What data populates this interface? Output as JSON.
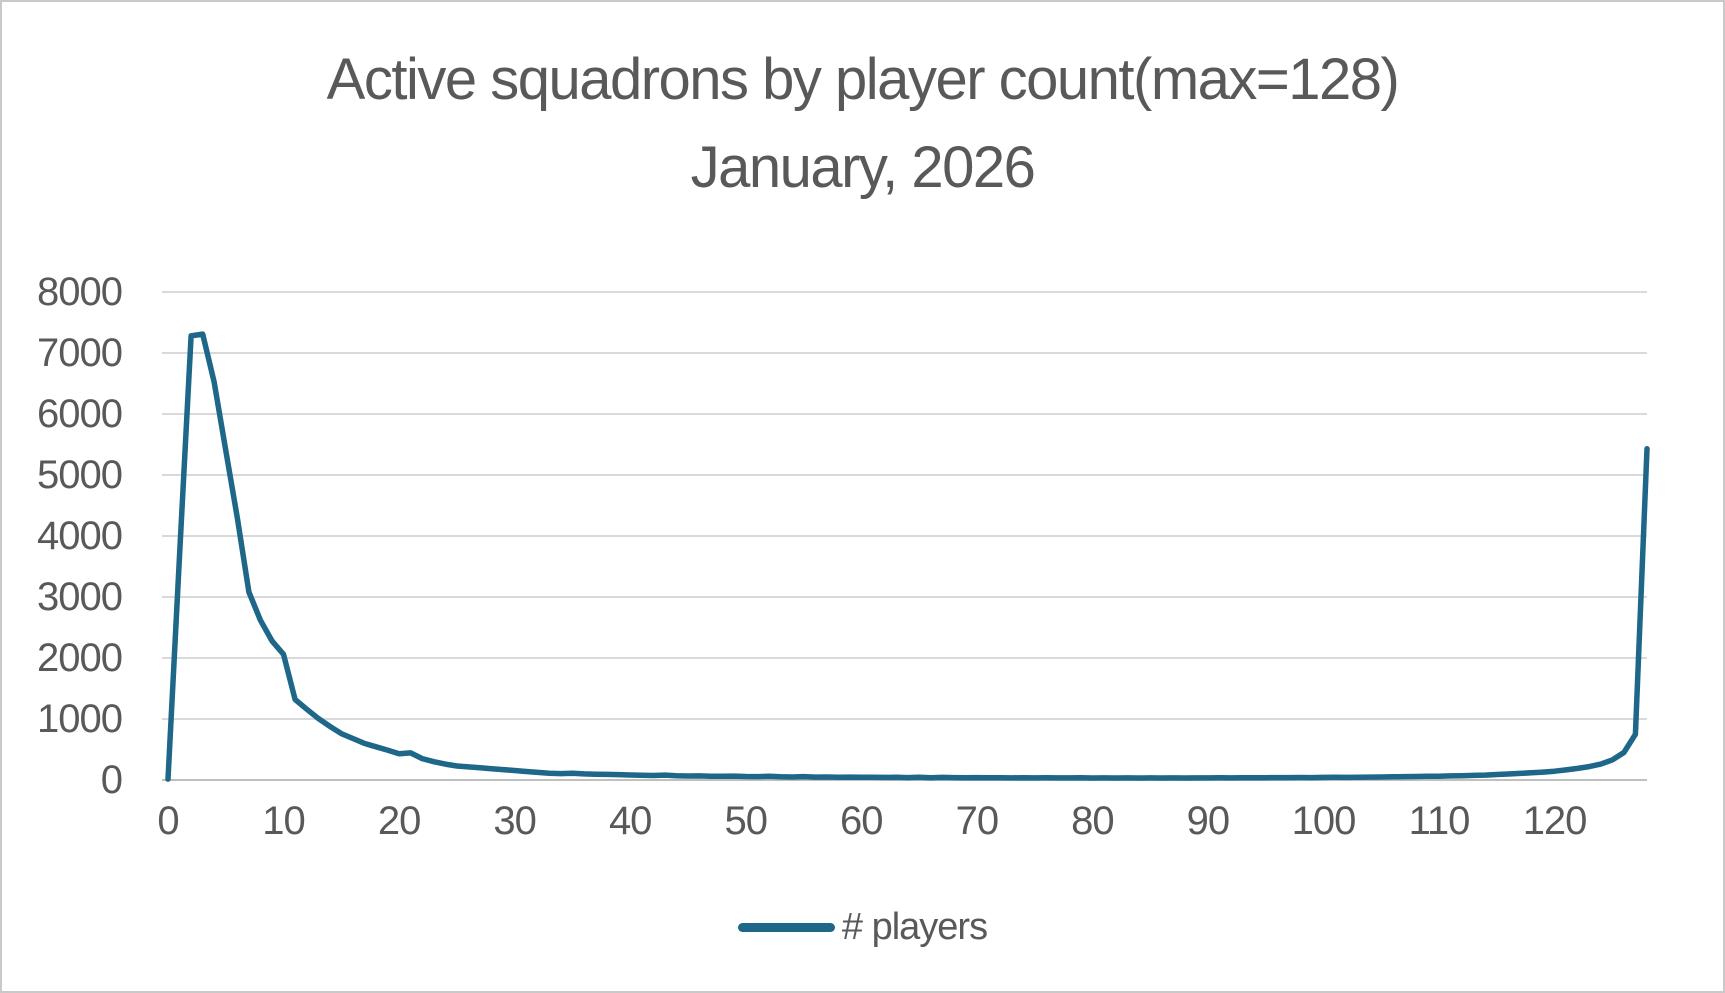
{
  "colors": {
    "series": "#1e6788",
    "grid": "#d9d9d9",
    "axis": "#bfbfbf",
    "text": "#595959",
    "background": "#ffffff",
    "border": "#c9c9c9"
  },
  "chart_data": {
    "type": "line",
    "title": "Active squadrons by player count(max=128)",
    "subtitle": "January, 2026",
    "xlabel": "",
    "ylabel": "",
    "xlim": [
      0,
      128
    ],
    "ylim": [
      0,
      8000
    ],
    "grid": "horizontal",
    "legend_position": "bottom",
    "x_label_ticks": [
      0,
      10,
      20,
      30,
      40,
      50,
      60,
      70,
      80,
      90,
      100,
      110,
      120
    ],
    "y_ticks": [
      0,
      1000,
      2000,
      3000,
      4000,
      5000,
      6000,
      7000,
      8000
    ],
    "x_start": 0,
    "x_step": 1,
    "series": [
      {
        "name": "# players",
        "values": [
          14,
          3700,
          7280,
          7310,
          6520,
          5400,
          4300,
          3080,
          2620,
          2280,
          2060,
          1320,
          1160,
          1010,
          880,
          760,
          680,
          600,
          545,
          490,
          430,
          445,
          350,
          300,
          260,
          230,
          215,
          200,
          185,
          170,
          155,
          140,
          125,
          112,
          105,
          112,
          100,
          95,
          92,
          88,
          82,
          78,
          74,
          80,
          70,
          65,
          68,
          62,
          60,
          64,
          58,
          55,
          60,
          52,
          50,
          55,
          48,
          50,
          46,
          48,
          44,
          46,
          42,
          45,
          40,
          44,
          38,
          42,
          40,
          38,
          40,
          36,
          38,
          35,
          38,
          34,
          36,
          35,
          34,
          36,
          33,
          35,
          32,
          34,
          33,
          35,
          32,
          34,
          33,
          35,
          34,
          36,
          35,
          37,
          36,
          38,
          40,
          39,
          41,
          40,
          42,
          44,
          43,
          46,
          48,
          50,
          53,
          56,
          58,
          60,
          63,
          67,
          70,
          75,
          80,
          90,
          98,
          108,
          118,
          130,
          145,
          165,
          190,
          220,
          260,
          330,
          450,
          750,
          5430
        ]
      }
    ]
  }
}
